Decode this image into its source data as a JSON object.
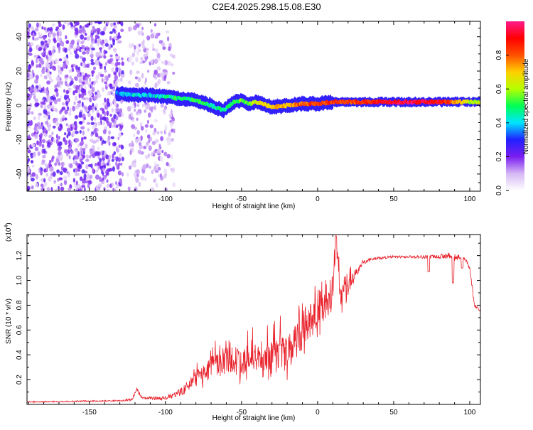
{
  "title": "C2E4.2025.298.15.08.E30",
  "chart_data": [
    {
      "type": "heatmap",
      "title": "C2E4.2025.298.15.08.E30",
      "xlabel": "Height of straight line (km)",
      "ylabel": "Frequency (Hz)",
      "xlim": [
        -191,
        107
      ],
      "ylim": [
        -50,
        49
      ],
      "xticks": [
        -150,
        -100,
        -50,
        0,
        50,
        100
      ],
      "yticks": [
        -40,
        -20,
        0,
        20,
        40
      ],
      "colorbar": {
        "label": "Normalized spectral amplitude",
        "range": [
          0,
          1
        ],
        "ticks": [
          0.0,
          0.2,
          0.4,
          0.6,
          0.8
        ],
        "colors": [
          "#ffffff",
          "#d6b8f5",
          "#7a1ef0",
          "#2020ff",
          "#00e5ff",
          "#00ff55",
          "#b5ff00",
          "#ffd000",
          "#ff5000",
          "#ff0000",
          "#ff1a8c"
        ]
      },
      "noise_region_x": [
        -191,
        -94
      ],
      "ridge_x": [
        -132,
        -120,
        -110,
        -100,
        -90,
        -80,
        -70,
        -62,
        -55,
        -50,
        -45,
        -40,
        -30,
        -20,
        -10,
        0,
        10,
        20,
        40,
        60,
        80,
        100,
        107
      ],
      "ridge_y": [
        7,
        6,
        6,
        5,
        4,
        3,
        0,
        -3,
        2,
        3,
        1,
        2,
        -1,
        0,
        1,
        1,
        2,
        2,
        2,
        2,
        2,
        2,
        2
      ],
      "ridge_amplitude": [
        0.35,
        0.4,
        0.4,
        0.45,
        0.5,
        0.5,
        0.45,
        0.45,
        0.5,
        0.55,
        0.55,
        0.65,
        0.7,
        0.75,
        0.8,
        0.85,
        0.85,
        0.8,
        0.9,
        0.95,
        0.9,
        0.6,
        0.6
      ]
    },
    {
      "type": "line",
      "xlabel": "Height of straight line (km)",
      "ylabel": "SNR (10 * v/v)",
      "scale_label": "(x10",
      "scale_exponent": "4",
      "scale_suffix": ")",
      "xlim": [
        -191,
        107
      ],
      "ylim": [
        0,
        1.37
      ],
      "xticks": [
        -150,
        -100,
        -50,
        0,
        50,
        100
      ],
      "yticks": [
        0.2,
        0.4,
        0.6,
        0.8,
        1.0,
        1.2
      ],
      "color": "#e8202a",
      "series": [
        {
          "name": "SNR",
          "x": [
            -191,
            -130,
            -122,
            -119,
            -115,
            -100,
            -93,
            -88,
            -80,
            -70,
            -60,
            -50,
            -40,
            -30,
            -20,
            -15,
            -10,
            -5,
            0,
            5,
            10,
            12,
            15,
            20,
            25,
            30,
            35,
            40,
            50,
            60,
            70,
            80,
            85,
            90,
            93,
            97,
            100,
            103,
            107
          ],
          "y": [
            0.02,
            0.03,
            0.04,
            0.12,
            0.05,
            0.05,
            0.08,
            0.12,
            0.2,
            0.3,
            0.35,
            0.35,
            0.38,
            0.4,
            0.4,
            0.48,
            0.6,
            0.7,
            0.78,
            0.82,
            0.9,
            1.35,
            0.85,
            0.95,
            1.05,
            1.15,
            1.17,
            1.18,
            1.19,
            1.19,
            1.19,
            1.19,
            1.2,
            1.18,
            1.19,
            1.18,
            1.1,
            0.8,
            0.75
          ],
          "spread": [
            0.01,
            0.01,
            0.02,
            0.04,
            0.02,
            0.03,
            0.05,
            0.08,
            0.12,
            0.18,
            0.22,
            0.25,
            0.25,
            0.3,
            0.3,
            0.3,
            0.3,
            0.3,
            0.3,
            0.28,
            0.3,
            0.25,
            0.2,
            0.15,
            0.08,
            0.04,
            0.03,
            0.02,
            0.02,
            0.02,
            0.03,
            0.03,
            0.05,
            0.08,
            0.03,
            0.03,
            0.03,
            0.03,
            0.03
          ],
          "dips": [
            [
              73,
              1.07
            ],
            [
              89,
              0.98
            ],
            [
              95,
              1.1
            ]
          ]
        }
      ]
    }
  ]
}
